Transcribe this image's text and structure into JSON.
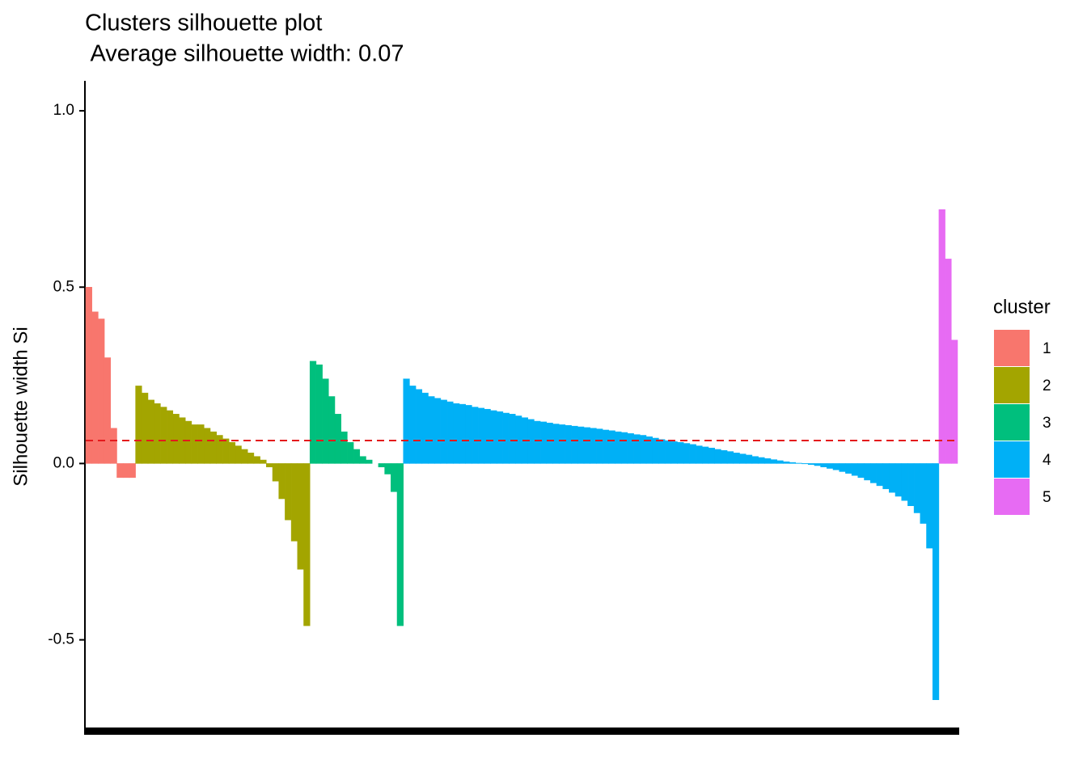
{
  "chart_data": {
    "type": "bar",
    "title": "Clusters silhouette plot",
    "subtitle": " Average silhouette width: 0.07",
    "y_label": "Silhouette width Si",
    "legend_title": "cluster",
    "legend_position": "right",
    "ylim": [
      -0.76,
      1.085
    ],
    "yticks": [
      -0.5,
      {
        "value": 0,
        "label": "0.0"
      },
      0.5,
      {
        "value": 1,
        "label": "1.0"
      }
    ],
    "hline": 0.065,
    "hline_color": "#e41a1c",
    "series": [
      {
        "name": "1",
        "color": "#F8766D",
        "values": [
          0.5,
          0.43,
          0.41,
          0.3,
          0.1,
          -0.04,
          -0.04,
          -0.04
        ]
      },
      {
        "name": "2",
        "color": "#A3A500",
        "values": [
          0.22,
          0.2,
          0.18,
          0.17,
          0.16,
          0.15,
          0.14,
          0.13,
          0.12,
          0.11,
          0.11,
          0.1,
          0.09,
          0.08,
          0.07,
          0.06,
          0.05,
          0.04,
          0.03,
          0.02,
          0.01,
          -0.01,
          -0.05,
          -0.1,
          -0.16,
          -0.22,
          -0.3,
          -0.46
        ]
      },
      {
        "name": "3",
        "color": "#00BF7D",
        "values": [
          0.29,
          0.28,
          0.24,
          0.19,
          0.14,
          0.09,
          0.06,
          0.04,
          0.02,
          0.01,
          0,
          -0.01,
          -0.03,
          -0.08,
          -0.46
        ]
      },
      {
        "name": "4",
        "color": "#00B0F6",
        "values": [
          0.24,
          0.22,
          0.21,
          0.2,
          0.19,
          0.185,
          0.18,
          0.175,
          0.17,
          0.168,
          0.165,
          0.16,
          0.157,
          0.154,
          0.15,
          0.147,
          0.143,
          0.14,
          0.135,
          0.13,
          0.125,
          0.12,
          0.118,
          0.115,
          0.112,
          0.11,
          0.108,
          0.106,
          0.104,
          0.102,
          0.1,
          0.098,
          0.095,
          0.093,
          0.09,
          0.088,
          0.085,
          0.082,
          0.08,
          0.076,
          0.072,
          0.068,
          0.065,
          0.062,
          0.06,
          0.057,
          0.054,
          0.05,
          0.047,
          0.044,
          0.04,
          0.037,
          0.034,
          0.03,
          0.027,
          0.024,
          0.02,
          0.017,
          0.014,
          0.011,
          0.008,
          0.005,
          0.003,
          0.001,
          -0.001,
          -0.003,
          -0.006,
          -0.01,
          -0.014,
          -0.018,
          -0.023,
          -0.028,
          -0.034,
          -0.04,
          -0.047,
          -0.055,
          -0.063,
          -0.072,
          -0.082,
          -0.093,
          -0.105,
          -0.12,
          -0.14,
          -0.17,
          -0.24,
          -0.67
        ]
      },
      {
        "name": "5",
        "color": "#E76BF3",
        "values": [
          0.72,
          0.58,
          0.35
        ]
      }
    ]
  }
}
